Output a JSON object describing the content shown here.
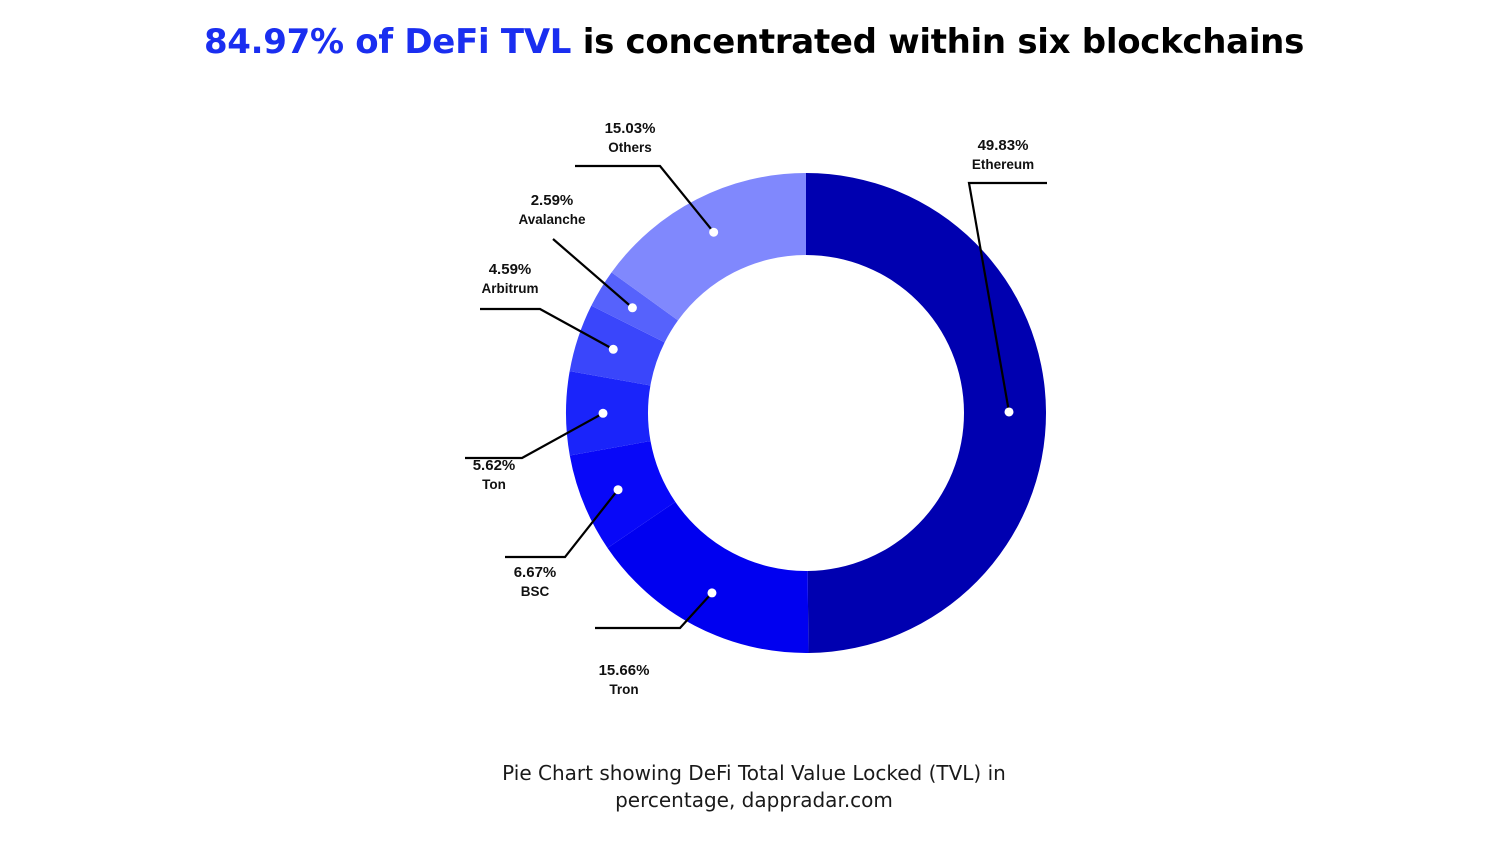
{
  "title": {
    "highlight": "84.97% of DeFi TVL",
    "rest": " is concentrated within six blockchains",
    "highlight_color": "#1a2ef0"
  },
  "caption": {
    "line1": "Pie Chart showing DeFi Total Value Locked (TVL) in",
    "line2": "percentage, dappradar.com"
  },
  "chart_data": {
    "type": "pie",
    "donut": true,
    "title": "84.97% of DeFi TVL is concentrated within six blockchains",
    "slices": [
      {
        "label": "Ethereum",
        "value": 49.83,
        "display": "49.83%",
        "color": "#0000b0"
      },
      {
        "label": "Tron",
        "value": 15.66,
        "display": "15.66%",
        "color": "#0000f0"
      },
      {
        "label": "BSC",
        "value": 6.67,
        "display": "6.67%",
        "color": "#0808f8"
      },
      {
        "label": "Ton",
        "value": 5.62,
        "display": "5.62%",
        "color": "#1a24fa"
      },
      {
        "label": "Arbitrum",
        "value": 4.59,
        "display": "4.59%",
        "color": "#3a46fb"
      },
      {
        "label": "Avalanche",
        "value": 2.59,
        "display": "2.59%",
        "color": "#5662fc"
      },
      {
        "label": "Others",
        "value": 15.03,
        "display": "15.03%",
        "color": "#8088fd"
      }
    ]
  }
}
